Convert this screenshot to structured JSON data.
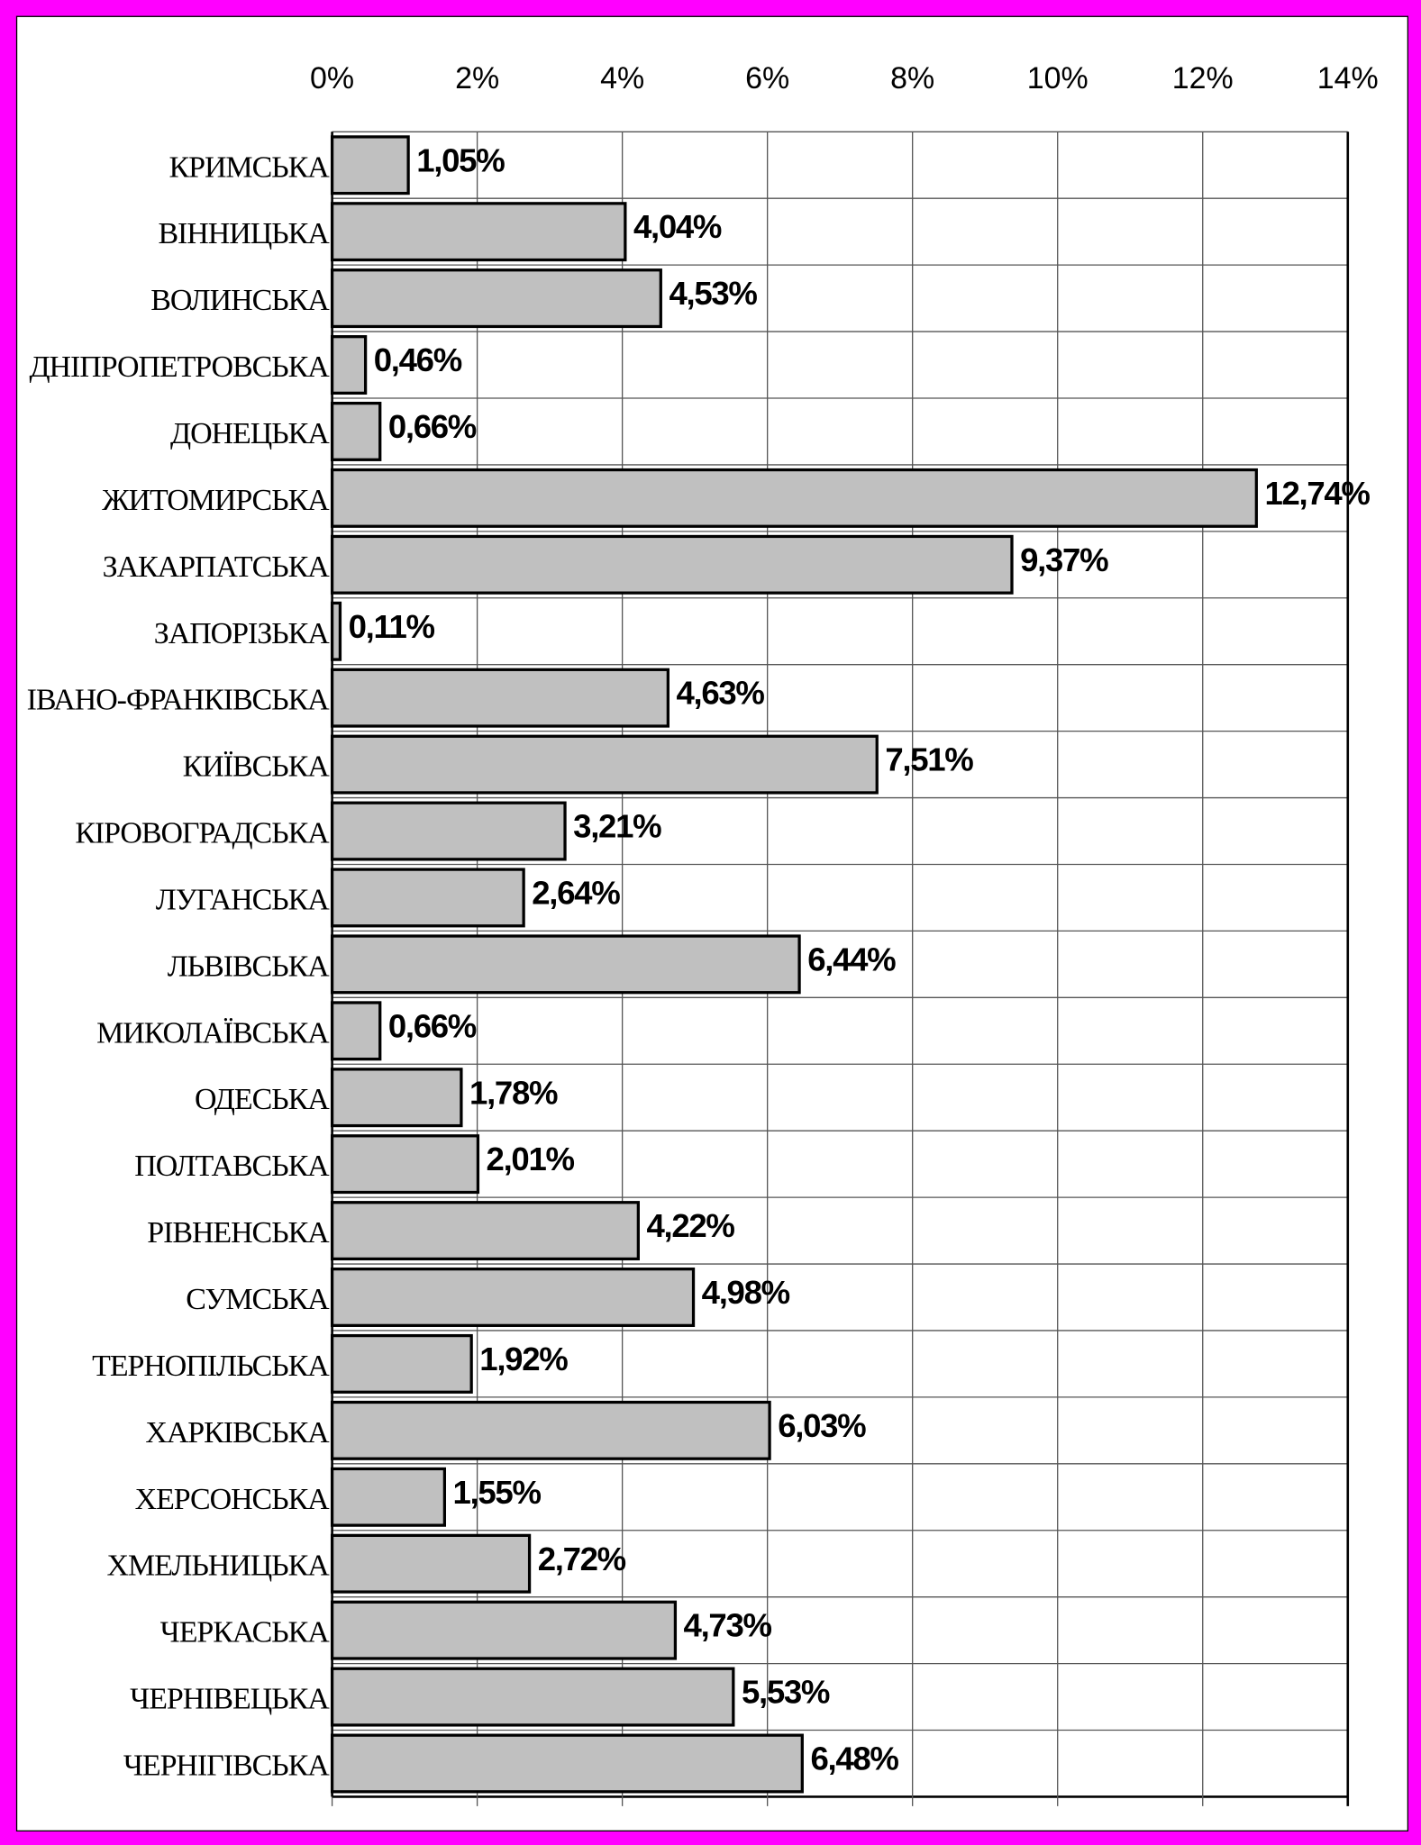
{
  "chart_data": {
    "type": "bar",
    "categories": [
      "КРИМСЬКА",
      "ВІННИЦЬКА",
      "ВОЛИНСЬКА",
      "ДНІПРОПЕТРОВСЬКА",
      "ДОНЕЦЬКА",
      "ЖИТОМИРСЬКА",
      "ЗАКАРПАТСЬКА",
      "ЗАПОРІЗЬКА",
      "ІВАНО-ФРАНКІВСЬКА",
      "КИЇВСЬКА",
      "КІРОВОГРАДСЬКА",
      "ЛУГАНСЬКА",
      "ЛЬВІВСЬКА",
      "МИКОЛАЇВСЬКА",
      "ОДЕСЬКА",
      "ПОЛТАВСЬКА",
      "РІВНЕНСЬКА",
      "СУМСЬКА",
      "ТЕРНОПІЛЬСЬКА",
      "ХАРКІВСЬКА",
      "ХЕРСОНСЬКА",
      "ХМЕЛЬНИЦЬКА",
      "ЧЕРКАСЬКА",
      "ЧЕРНІВЕЦЬКА",
      "ЧЕРНІГІВСЬКА"
    ],
    "values": [
      1.05,
      4.04,
      4.53,
      0.46,
      0.66,
      12.74,
      9.37,
      0.11,
      4.63,
      7.51,
      3.21,
      2.64,
      6.44,
      0.66,
      1.78,
      2.01,
      4.22,
      4.98,
      1.92,
      6.03,
      1.55,
      2.72,
      4.73,
      5.53,
      6.48
    ],
    "value_labels": [
      "1,05%",
      "4,04%",
      "4,53%",
      "0,46%",
      "0,66%",
      "12,74%",
      "9,37%",
      "0,11%",
      "4,63%",
      "7,51%",
      "3,21%",
      "2,64%",
      "6,44%",
      "0,66%",
      "1,78%",
      "2,01%",
      "4,22%",
      "4,98%",
      "1,92%",
      "6,03%",
      "1,55%",
      "2,72%",
      "4,73%",
      "5,53%",
      "6,48%"
    ],
    "color": "#c0c0c0",
    "xlim": [
      0,
      14
    ],
    "xticks": [
      {
        "value": 0,
        "label": "0%"
      },
      {
        "value": 2,
        "label": "2%"
      },
      {
        "value": 4,
        "label": "4%"
      },
      {
        "value": 6,
        "label": "6%"
      },
      {
        "value": 8,
        "label": "8%"
      },
      {
        "value": 10,
        "label": "10%"
      },
      {
        "value": 12,
        "label": "12%"
      },
      {
        "value": 14,
        "label": "14%"
      }
    ],
    "grid": true
  }
}
